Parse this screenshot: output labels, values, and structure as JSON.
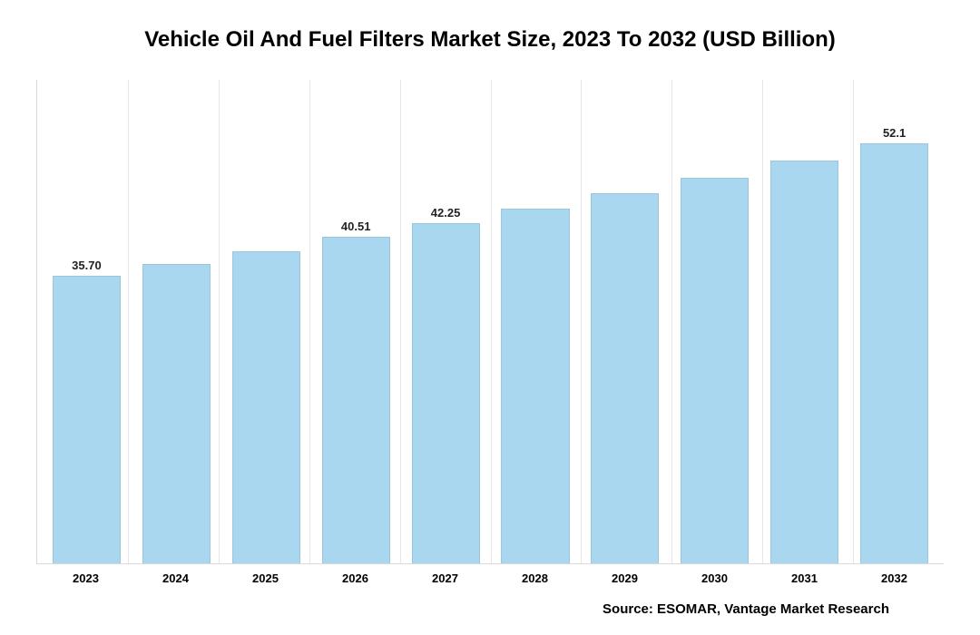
{
  "chart": {
    "type": "bar",
    "title": "Vehicle Oil And Fuel Filters Market Size, 2023 To 2032 (USD Billion)",
    "title_fontsize": 24,
    "categories": [
      "2023",
      "2024",
      "2025",
      "2026",
      "2027",
      "2028",
      "2029",
      "2030",
      "2031",
      "2032"
    ],
    "values": [
      35.7,
      37.1,
      38.75,
      40.51,
      42.25,
      44.0,
      45.9,
      47.9,
      49.95,
      52.1
    ],
    "shown_labels": {
      "0": "35.70",
      "3": "40.51",
      "4": "42.25",
      "9": "52.1"
    },
    "ylim": [
      0,
      60
    ],
    "bar_color": "#a9d7ef",
    "bar_border_color": "rgba(0,0,0,0.08)",
    "grid_color": "#e6e6e6",
    "axis_color": "#d9d9d9",
    "background_color": "#ffffff",
    "bar_width_ratio": 0.76,
    "xtick_fontsize": 13,
    "xtick_fontweight": 700,
    "barlabel_fontsize": 13,
    "barlabel_fontweight": 700,
    "source_text": "Source: ESOMAR, Vantage Market Research",
    "source_fontsize": 15
  }
}
